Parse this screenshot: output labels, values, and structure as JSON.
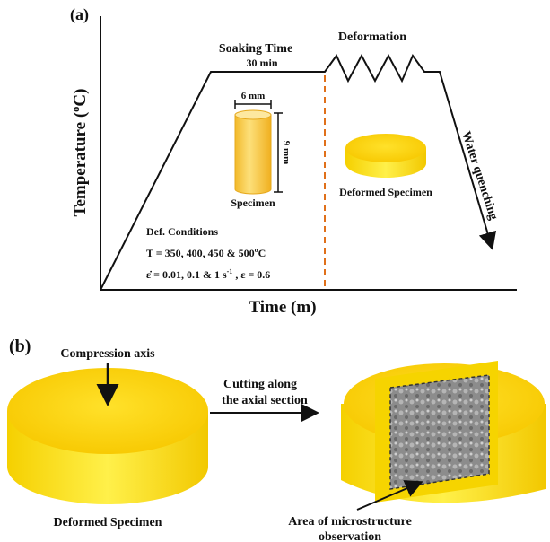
{
  "panel_a": {
    "label": "(a)",
    "y_axis_label": "Temperature (ºC)",
    "x_axis_label": "Time (m)",
    "soaking_time": "Soaking Time",
    "soaking_duration": "30 min",
    "deformation": "Deformation",
    "water_quenching": "Water quenching",
    "diameter": "6 mm",
    "height": "9 mm",
    "specimen": "Specimen",
    "deformed_specimen": "Deformed Specimen",
    "conditions_title": "Def. Conditions",
    "temperatures": "T = 350, 400, 450 & 500ºC",
    "strain_rates": {
      "main": "ε̇ = 0.01, 0.1 & 1 s",
      "exponent": "-1",
      "rest": " , ε = 0.6"
    }
  },
  "panel_b": {
    "label": "(b)",
    "compression_axis": "Compression axis",
    "cutting_line1": "Cutting along",
    "cutting_line2": "the axial section",
    "deformed_specimen": "Deformed Specimen",
    "area_line1": "Area of microstructure",
    "area_line2": "observation"
  }
}
